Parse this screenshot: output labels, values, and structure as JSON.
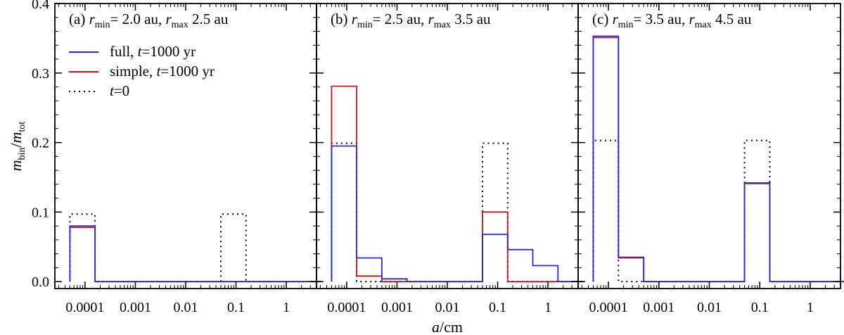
{
  "chart_data": {
    "type": "histogram-step",
    "shared": {
      "xlabel": {
        "main": "a",
        "rest": "/cm"
      },
      "ylabel": {
        "m": "m",
        "bin": "bin",
        "slash": "/",
        "m2": "m",
        "tot": "tot"
      },
      "x_log_range": [
        -4.6,
        0.6
      ],
      "ylim": [
        -0.01,
        0.4
      ],
      "x_ticks": [
        {
          "value": 0.0001,
          "label": "0.0001"
        },
        {
          "value": 0.001,
          "label": "0.001"
        },
        {
          "value": 0.01,
          "label": "0.01"
        },
        {
          "value": 0.1,
          "label": "0.1"
        },
        {
          "value": 1,
          "label": "1"
        }
      ],
      "y_ticks": [
        {
          "value": 0.0,
          "label": "0.0"
        },
        {
          "value": 0.1,
          "label": "0.1"
        },
        {
          "value": 0.2,
          "label": "0.2"
        },
        {
          "value": 0.3,
          "label": "0.3"
        },
        {
          "value": 0.4,
          "label": "0.4"
        }
      ],
      "bin_edges": [
        5e-05,
        0.000158,
        0.0005,
        0.00158,
        0.005,
        0.0158,
        0.05,
        0.158,
        0.5,
        1.58,
        5.0
      ],
      "legend": [
        {
          "label_pre": "full, ",
          "label_t": "t",
          "label_post": "=1000 yr",
          "color": "#2b2bd0",
          "style": "solid"
        },
        {
          "label_pre": "simple, ",
          "label_t": "t",
          "label_post": "=1000 yr",
          "color": "#c0201a",
          "style": "solid"
        },
        {
          "label_pre": "",
          "label_t": "t",
          "label_post": "=0",
          "color": "#000000",
          "style": "dotted"
        }
      ],
      "colors": {
        "full": "#2b2bd0",
        "simple": "#c0201a",
        "initial": "#000000",
        "axis": "#000000"
      }
    },
    "panels": [
      {
        "title": {
          "prefix": "(a) ",
          "r": "r",
          "min": "min",
          "eq1": "= 2.0 au, ",
          "max": "max",
          "eq2": " 2.5 au"
        },
        "series": [
          {
            "name": "t=0",
            "values": [
              0.097,
              0,
              0,
              0,
              0,
              0,
              0.097,
              0,
              0,
              0
            ]
          },
          {
            "name": "simple, t=1000 yr",
            "values": [
              0.078,
              0,
              0,
              0,
              0,
              0,
              0,
              0,
              0,
              0
            ]
          },
          {
            "name": "full, t=1000 yr",
            "values": [
              0.08,
              0,
              0,
              0,
              0,
              0,
              0,
              0,
              0,
              0
            ]
          }
        ]
      },
      {
        "title": {
          "prefix": "(b) ",
          "r": "r",
          "min": "min",
          "eq1": "= 2.5 au, ",
          "max": "max",
          "eq2": " 3.5 au"
        },
        "series": [
          {
            "name": "t=0",
            "values": [
              0.199,
              0,
              0,
              0,
              0,
              0,
              0.199,
              0,
              0,
              0
            ]
          },
          {
            "name": "simple, t=1000 yr",
            "values": [
              0.281,
              0.008,
              0.0,
              0,
              0,
              0,
              0.1,
              0,
              0,
              0
            ]
          },
          {
            "name": "full, t=1000 yr",
            "values": [
              0.195,
              0.034,
              0.004,
              0,
              0,
              0,
              0.068,
              0.046,
              0.023,
              0
            ]
          }
        ]
      },
      {
        "title": {
          "prefix": "(c) ",
          "r": "r",
          "min": "min",
          "eq1": "= 3.5 au, ",
          "max": "max",
          "eq2": " 4.5 au"
        },
        "series": [
          {
            "name": "t=0",
            "values": [
              0.203,
              0,
              0,
              0,
              0,
              0,
              0.203,
              0,
              0,
              0
            ]
          },
          {
            "name": "simple, t=1000 yr",
            "values": [
              0.351,
              0.034,
              0,
              0,
              0,
              0,
              0.141,
              0,
              0,
              0
            ]
          },
          {
            "name": "full, t=1000 yr",
            "values": [
              0.353,
              0.035,
              0,
              0,
              0,
              0,
              0.142,
              0,
              0,
              0
            ]
          }
        ]
      }
    ]
  }
}
